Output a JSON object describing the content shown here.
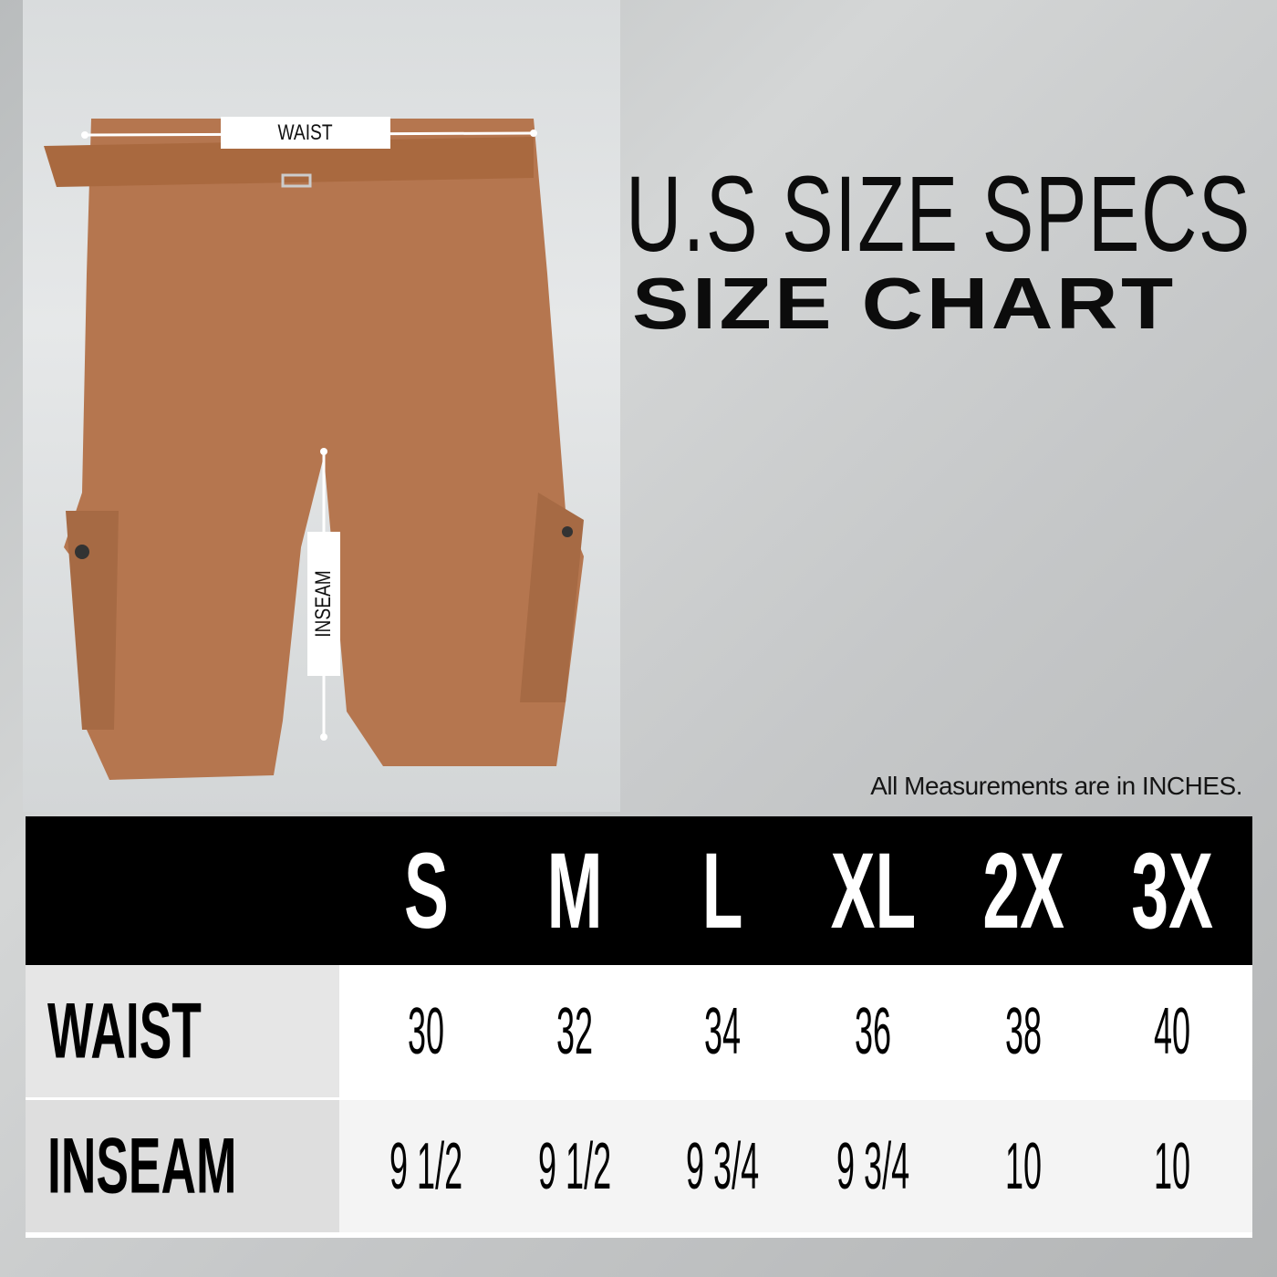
{
  "photo": {
    "waist_label": "WAIST",
    "inseam_label": "INSEAM",
    "shorts_color": "#b5764f"
  },
  "title": {
    "line1": "U.S SIZE SPECS",
    "line2": "SIZE CHART"
  },
  "note": "All Measurements are in INCHES.",
  "table": {
    "sizes": [
      "S",
      "M",
      "L",
      "XL",
      "2X",
      "3X"
    ],
    "rows": [
      {
        "label": "WAIST",
        "values": [
          "30",
          "32",
          "34",
          "36",
          "38",
          "40"
        ]
      },
      {
        "label": "INSEAM",
        "values": [
          "9 1/2",
          "9 1/2",
          "9 3/4",
          "9 3/4",
          "10",
          "10"
        ]
      }
    ]
  }
}
